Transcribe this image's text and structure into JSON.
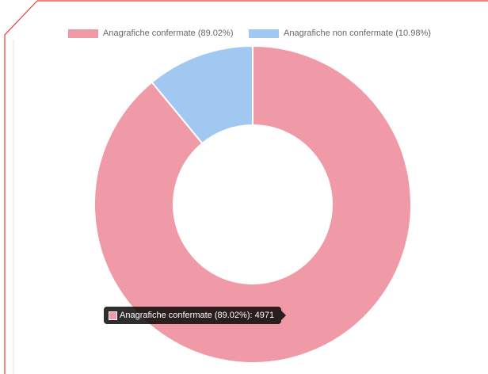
{
  "colors": {
    "frame": "#e53935",
    "confirmed": "#ef9aa6",
    "unconfirmed": "#a0c8f0",
    "slice_border": "#ffffff"
  },
  "legend": {
    "items": [
      {
        "label": "Anagrafiche confermate (89.02%)"
      },
      {
        "label": "Anagrafiche non confermate (10.98%)"
      }
    ]
  },
  "tooltip": {
    "text": "Anagrafiche confermate (89.02%): 4971"
  },
  "chart_data": {
    "type": "pie",
    "variant": "doughnut",
    "title": "",
    "legend_position": "top",
    "slices": [
      {
        "label": "Anagrafiche confermate (89.02%)",
        "value": 4971,
        "percent": 89.02,
        "color": "#ef9aa6"
      },
      {
        "label": "Anagrafiche non confermate (10.98%)",
        "percent": 10.98,
        "color": "#a0c8f0"
      }
    ]
  }
}
